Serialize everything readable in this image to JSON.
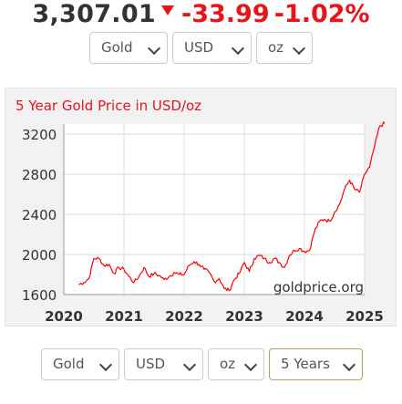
{
  "quote": {
    "price": "3,307.01",
    "change": "-33.99",
    "change_pct": "-1.02%",
    "direction_icon": "down-triangle-icon",
    "up_color": "#e8141b",
    "price_color": "#333333"
  },
  "top_selectors": {
    "metal": "Gold",
    "currency": "USD",
    "unit": "oz"
  },
  "chart_panel": {
    "title": "5 Year Gold Price in USD/oz",
    "watermark": "goldprice.org"
  },
  "bottom_selectors": {
    "metal": "Gold",
    "currency": "USD",
    "unit": "oz",
    "range": "5 Years"
  },
  "chart_data": {
    "type": "line",
    "title": "5 Year Gold Price in USD/oz",
    "xlabel": "",
    "ylabel": "",
    "line_color": "#ff0000",
    "grid": true,
    "xlim": [
      2020,
      2025
    ],
    "ylim": [
      1600,
      3300
    ],
    "x_ticks": [
      "2020",
      "2021",
      "2022",
      "2023",
      "2024",
      "2025"
    ],
    "y_ticks": [
      "1600",
      "2000",
      "2400",
      "2800",
      "3200"
    ],
    "series": [
      {
        "x": [
          "2020-04",
          "2020-05",
          "2020-06",
          "2020-07",
          "2020-08",
          "2020-09",
          "2020-10",
          "2020-11",
          "2020-12",
          "2021-01",
          "2021-02",
          "2021-03",
          "2021-04",
          "2021-05",
          "2021-06",
          "2021-07",
          "2021-08",
          "2021-09",
          "2021-10",
          "2021-11",
          "2021-12",
          "2022-01",
          "2022-02",
          "2022-03",
          "2022-04",
          "2022-05",
          "2022-06",
          "2022-07",
          "2022-08",
          "2022-09",
          "2022-10",
          "2022-11",
          "2022-12",
          "2023-01",
          "2023-02",
          "2023-03",
          "2023-04",
          "2023-05",
          "2023-06",
          "2023-07",
          "2023-08",
          "2023-09",
          "2023-10",
          "2023-11",
          "2023-12",
          "2024-01",
          "2024-02",
          "2024-03",
          "2024-04",
          "2024-05",
          "2024-06",
          "2024-07",
          "2024-08",
          "2024-09",
          "2024-10",
          "2024-11",
          "2024-12",
          "2025-01",
          "2025-02",
          "2025-03",
          "2025-04",
          "2025-05"
        ],
        "y": [
          1700,
          1720,
          1760,
          1960,
          1960,
          1890,
          1900,
          1810,
          1870,
          1850,
          1780,
          1720,
          1780,
          1870,
          1780,
          1810,
          1790,
          1750,
          1780,
          1820,
          1800,
          1800,
          1890,
          1930,
          1900,
          1850,
          1820,
          1730,
          1760,
          1660,
          1640,
          1750,
          1810,
          1920,
          1830,
          1960,
          1990,
          1960,
          1920,
          1960,
          1920,
          1870,
          1990,
          2040,
          2060,
          2030,
          2040,
          2230,
          2330,
          2350,
          2330,
          2420,
          2500,
          2650,
          2740,
          2650,
          2620,
          2800,
          2870,
          3080,
          3280,
          3307
        ]
      }
    ]
  }
}
